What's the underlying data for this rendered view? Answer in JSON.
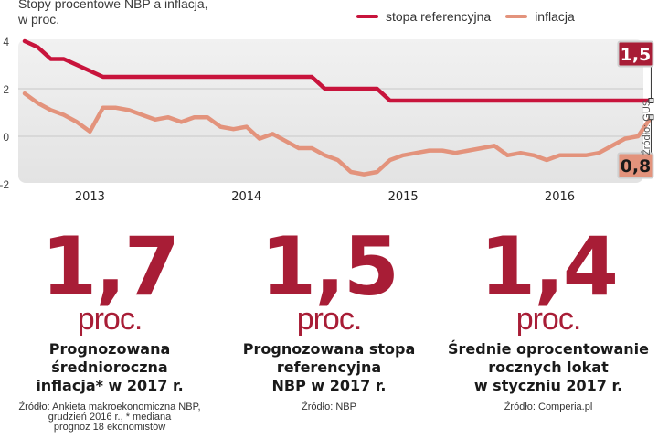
{
  "colors": {
    "reference": "#c8143c",
    "inflation": "#e3937c",
    "big_number": "#a81d36",
    "plot_bg": "#ececec",
    "label_ref_bg": "#a81d36",
    "label_inf_bg": "#e3937c"
  },
  "chart_data": {
    "type": "line",
    "title": "Stopy procentowe NBP a inflacja, w proc.",
    "title_line1": "Stopy procentowe NBP a inflacja,",
    "title_line2": "w proc.",
    "xlabel": "",
    "ylabel": "",
    "ylim": [
      -2,
      4
    ],
    "yticks": [
      4,
      2,
      0,
      -2
    ],
    "ytick_labels": [
      "4",
      "2",
      "0",
      "-2"
    ],
    "xticks": [
      "2013",
      "2014",
      "2015",
      "2016"
    ],
    "grid": true,
    "legend_position": "top-right",
    "x_start": "2012-08",
    "x_step": "month",
    "series": [
      {
        "name": "stopa referencyjna",
        "values": [
          4.0,
          3.75,
          3.25,
          3.25,
          3.0,
          2.75,
          2.5,
          2.5,
          2.5,
          2.5,
          2.5,
          2.5,
          2.5,
          2.5,
          2.5,
          2.5,
          2.5,
          2.5,
          2.5,
          2.5,
          2.5,
          2.5,
          2.5,
          2.0,
          2.0,
          2.0,
          2.0,
          2.0,
          1.5,
          1.5,
          1.5,
          1.5,
          1.5,
          1.5,
          1.5,
          1.5,
          1.5,
          1.5,
          1.5,
          1.5,
          1.5,
          1.5,
          1.5,
          1.5,
          1.5,
          1.5,
          1.5,
          1.5,
          1.5
        ],
        "end_label": "1,5"
      },
      {
        "name": "inflacja",
        "values": [
          1.8,
          1.4,
          1.1,
          0.9,
          0.6,
          0.2,
          1.2,
          1.2,
          1.1,
          0.9,
          0.7,
          0.8,
          0.6,
          0.8,
          0.8,
          0.4,
          0.3,
          0.4,
          -0.1,
          0.1,
          -0.2,
          -0.5,
          -0.5,
          -0.8,
          -1.0,
          -1.5,
          -1.6,
          -1.5,
          -1.0,
          -0.8,
          -0.7,
          -0.6,
          -0.6,
          -0.7,
          -0.6,
          -0.5,
          -0.4,
          -0.8,
          -0.7,
          -0.8,
          -1.0,
          -0.8,
          -0.8,
          -0.8,
          -0.7,
          -0.4,
          -0.1,
          0.0,
          0.8
        ],
        "end_label": "0,8"
      }
    ]
  },
  "side_source": "Źródło: GUS",
  "stats": [
    {
      "value": "1,7",
      "unit": "proc.",
      "desc_lines": [
        "Prognozowana",
        "średnioroczna",
        "inflacja* w 2017 r."
      ],
      "source_lines": [
        "Źródło: Ankieta makroekonomiczna NBP,",
        "grudzień 2016 r., * mediana",
        "prognoz 18 ekonomistów"
      ]
    },
    {
      "value": "1,5",
      "unit": "proc.",
      "desc_lines": [
        "Prognozowana stopa",
        "referencyjna",
        "NBP w 2017 r."
      ],
      "source_lines": [
        "Źródło: NBP"
      ]
    },
    {
      "value": "1,4",
      "unit": "proc.",
      "desc_lines": [
        "Średnie oprocentowanie",
        "rocznych lokat",
        "w styczniu 2017 r."
      ],
      "source_lines": [
        "Źródło: Comperia.pl"
      ]
    }
  ]
}
